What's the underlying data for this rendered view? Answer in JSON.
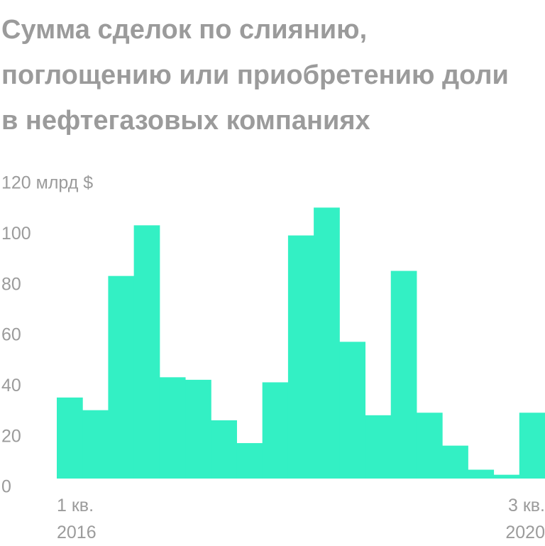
{
  "chart_data": {
    "type": "bar",
    "title": "Сумма сделок по слиянию, поглощению или приобретению доли в нефтегазовых компаниях",
    "categories": [
      "1 кв. 2016",
      null,
      null,
      null,
      null,
      null,
      null,
      null,
      null,
      null,
      null,
      null,
      null,
      null,
      null,
      null,
      null,
      null,
      "3 кв. 2020"
    ],
    "values": [
      32,
      27,
      80,
      100,
      40,
      39,
      23,
      14,
      38,
      96,
      107,
      54,
      25,
      82,
      26,
      13,
      3.5,
      1.5,
      26
    ],
    "color": "#33f0c4",
    "ylim": [
      0,
      120
    ],
    "yticks": [
      0,
      20,
      40,
      60,
      80,
      100,
      {
        "value": 120,
        "label": "120 млрд $"
      }
    ],
    "grid": false
  }
}
